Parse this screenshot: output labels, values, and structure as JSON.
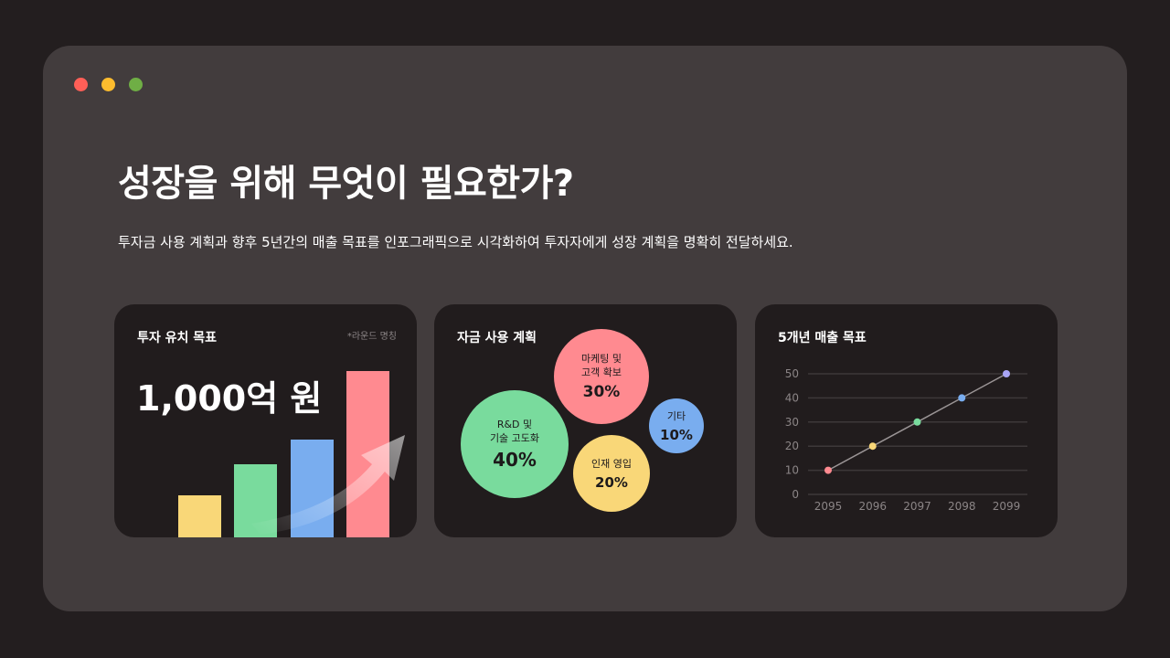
{
  "window": {
    "dots": [
      {
        "name": "close",
        "color": "#ff5f57"
      },
      {
        "name": "minimize",
        "color": "#fdbc2e"
      },
      {
        "name": "maximize",
        "color": "#6fae45"
      }
    ]
  },
  "header": {
    "title": "성장을 위해 무엇이 필요한가?",
    "subtitle": "투자금 사용 계획과 향후 5년간의 매출 목표를 인포그래픽으로 시각화하여 투자자에게 성장 계획을 명확히 전달하세요."
  },
  "investment": {
    "title": "투자 유치 목표",
    "note": "*라운드 명칭",
    "amount": "1,000억 원",
    "bars": [
      {
        "color": "#f9d778",
        "value": 0.25
      },
      {
        "color": "#79db9d",
        "value": 0.44
      },
      {
        "color": "#79adef",
        "value": 0.59
      },
      {
        "color": "#ff8a90",
        "value": 1.0
      }
    ]
  },
  "funds": {
    "title": "자금 사용 계획",
    "items": [
      {
        "label": "R&D 및\n기술 고도화",
        "percent": "40%",
        "value": 40,
        "color": "#79db9d"
      },
      {
        "label": "마케팅 및\n고객 확보",
        "percent": "30%",
        "value": 30,
        "color": "#ff8a90"
      },
      {
        "label": "인재 영입",
        "percent": "20%",
        "value": 20,
        "color": "#f9d778"
      },
      {
        "label": "기타",
        "percent": "10%",
        "value": 10,
        "color": "#79adef"
      }
    ]
  },
  "revenue": {
    "title": "5개년 매출 목표"
  },
  "chart_data": {
    "type": "line",
    "title": "5개년 매출 목표",
    "x": [
      "2095",
      "2096",
      "2097",
      "2098",
      "2099"
    ],
    "y_ticks": [
      "0",
      "10",
      "20",
      "30",
      "40",
      "50"
    ],
    "ylim": [
      0,
      50
    ],
    "grid": true,
    "series": [
      {
        "values": [
          10,
          20,
          30,
          40,
          50
        ],
        "point_colors": [
          "#ff8a90",
          "#f9d778",
          "#79db9d",
          "#79adef",
          "#a9a4f5"
        ]
      }
    ]
  }
}
